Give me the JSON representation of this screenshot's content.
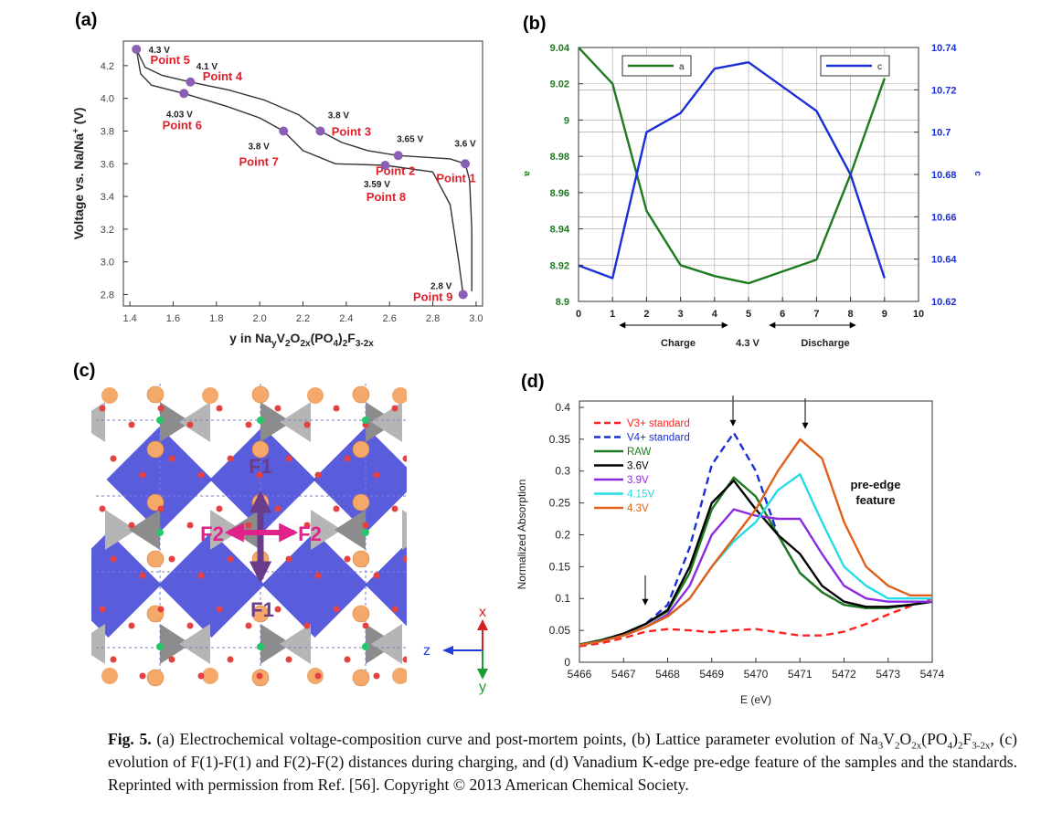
{
  "panels": [
    "(a)",
    "(b)",
    "(c)",
    "(d)"
  ],
  "chart_data": [
    {
      "type": "line",
      "xlabel": [
        "y in Na",
        "y",
        "V",
        "2",
        "O",
        "2x",
        "(PO",
        "4",
        ")",
        "2",
        "F",
        "3-2x"
      ],
      "ylabel": [
        "Voltage vs. Na/Na",
        "+",
        " (V)"
      ],
      "xlim": [
        1.37,
        3.03
      ],
      "ylim": [
        2.73,
        4.35
      ],
      "xticks": [
        1.4,
        1.6,
        1.8,
        {
          "value": 2,
          "label": "2.0"
        },
        2.2,
        2.4,
        2.6,
        2.8,
        {
          "value": 3,
          "label": "3.0"
        }
      ],
      "yticks": [
        2.8,
        {
          "value": 3,
          "label": "3.0"
        },
        3.2,
        3.4,
        3.6,
        3.8,
        {
          "value": 4,
          "label": "4.0"
        },
        4.2
      ],
      "grid": false,
      "series": [
        {
          "color": "#333333",
          "x": [
            2.98,
            2.98,
            2.97,
            2.95,
            2.88,
            2.76,
            2.64,
            2.5,
            2.38,
            2.28,
            2.18,
            2.02,
            1.86,
            1.68,
            1.55,
            1.47,
            1.43
          ],
          "values": [
            2.82,
            3.2,
            3.5,
            3.6,
            3.63,
            3.64,
            3.65,
            3.68,
            3.73,
            3.8,
            3.9,
            3.99,
            4.05,
            4.1,
            4.14,
            4.19,
            4.3
          ]
        },
        {
          "color": "#333333",
          "x": [
            1.43,
            1.45,
            1.5,
            1.65,
            1.85,
            2.0,
            2.11,
            2.2,
            2.35,
            2.58,
            2.8,
            2.88,
            2.92,
            2.94
          ],
          "values": [
            4.3,
            4.15,
            4.08,
            4.03,
            3.95,
            3.88,
            3.8,
            3.68,
            3.6,
            3.59,
            3.55,
            3.35,
            3.0,
            2.8
          ]
        }
      ],
      "points": {
        "color": "#8a5fb5",
        "x": [
          2.95,
          2.64,
          2.28,
          1.68,
          1.43,
          1.65,
          2.11,
          2.58,
          2.94
        ],
        "values": [
          3.6,
          3.65,
          3.8,
          4.1,
          4.3,
          4.03,
          3.8,
          3.59,
          2.8
        ],
        "value_labels": [
          "3.6 V",
          "3.65 V",
          "3.8 V",
          "4.1 V",
          "4.3 V",
          "4.03 V",
          "3.8 V",
          "3.59 V",
          "2.8 V"
        ],
        "labels": [
          "Point 1",
          "Point 2",
          "Point 3",
          "Point 4",
          "Point 5",
          "Point 6",
          "Point 7",
          "Point 8",
          "Point 9"
        ]
      }
    },
    {
      "type": "line",
      "ylabel": "a",
      "y2label": "c",
      "legend": "top",
      "xlim": [
        0,
        10
      ],
      "ylim": [
        8.9,
        9.04
      ],
      "y2lim": [
        10.62,
        10.74
      ],
      "xticks": [
        0,
        1,
        2,
        3,
        4,
        5,
        6,
        7,
        8,
        9,
        10
      ],
      "yticks": [
        8.9,
        8.92,
        8.94,
        8.96,
        8.98,
        9,
        9.02,
        9.04
      ],
      "y2ticks": [
        10.62,
        10.64,
        10.66,
        10.68,
        10.7,
        10.72,
        10.74
      ],
      "grid": true,
      "annotations": [
        "Charge",
        "4.3 V",
        "Discharge"
      ],
      "series": [
        {
          "name": "a",
          "color": "#1e7a1e",
          "x": [
            0,
            1,
            2,
            3,
            4,
            5,
            7,
            8,
            9
          ],
          "values": [
            9.04,
            9.02,
            8.95,
            8.92,
            8.914,
            8.91,
            8.923,
            8.97,
            9.023
          ]
        },
        {
          "name": "c",
          "color": "#1a2fd6",
          "axis": "y2",
          "x": [
            0,
            1,
            2,
            3,
            4,
            5,
            7,
            8,
            9
          ],
          "values": [
            10.637,
            10.631,
            10.7,
            10.709,
            10.73,
            10.733,
            10.71,
            10.68,
            10.631
          ]
        }
      ]
    },
    {
      "type": "line",
      "xlabel": "E (eV)",
      "ylabel": "Normalized Absorption",
      "legend": "upper left",
      "annotation": [
        "pre-edge",
        "feature"
      ],
      "xlim": [
        5466,
        5474
      ],
      "ylim": [
        0,
        0.41
      ],
      "xticks": [
        5466,
        5467,
        5468,
        5469,
        5470,
        5471,
        5472,
        5473,
        5474
      ],
      "yticks": [
        0,
        0.05,
        0.1,
        0.15,
        0.2,
        0.25,
        0.3,
        0.35,
        0.4
      ],
      "grid": false,
      "x": [
        5466,
        5466.5,
        5467,
        5467.5,
        5468,
        5468.5,
        5469,
        5469.5,
        5470,
        5470.5,
        5471,
        5471.5,
        5472,
        5472.5,
        5473,
        5473.5,
        5474
      ],
      "series": [
        {
          "name": "V3+ standard",
          "color": "#ff2222",
          "dash": true,
          "values": [
            0.025,
            0.03,
            0.038,
            0.048,
            0.052,
            0.05,
            0.047,
            0.05,
            0.052,
            0.047,
            0.042,
            0.042,
            0.048,
            0.06,
            0.075,
            0.088,
            0.1
          ]
        },
        {
          "name": "V4+ standard",
          "color": "#1a2fd6",
          "dash": true,
          "values": [
            0.028,
            0.035,
            0.045,
            0.06,
            0.09,
            0.18,
            0.31,
            0.36,
            0.3,
            0.2,
            0.14,
            0.11,
            0.09,
            0.085,
            0.085,
            0.09,
            0.095
          ]
        },
        {
          "name": "RAW",
          "color": "#1e7a1e",
          "values": [
            0.028,
            0.035,
            0.045,
            0.06,
            0.08,
            0.14,
            0.24,
            0.29,
            0.26,
            0.2,
            0.14,
            0.11,
            0.09,
            0.085,
            0.085,
            0.09,
            0.095
          ]
        },
        {
          "name": "3.6V",
          "color": "#000000",
          "values": [
            0.027,
            0.034,
            0.045,
            0.06,
            0.082,
            0.15,
            0.25,
            0.285,
            0.24,
            0.2,
            0.17,
            0.12,
            0.095,
            0.087,
            0.087,
            0.09,
            0.095
          ]
        },
        {
          "name": "3.9V",
          "color": "#8a2be2",
          "values": [
            0.027,
            0.033,
            0.042,
            0.055,
            0.075,
            0.12,
            0.2,
            0.24,
            0.23,
            0.225,
            0.225,
            0.17,
            0.12,
            0.1,
            0.095,
            0.095,
            0.095
          ]
        },
        {
          "name": "4.15V",
          "color": "#22dde6",
          "values": [
            0.027,
            0.033,
            0.042,
            0.055,
            0.072,
            0.1,
            0.15,
            0.19,
            0.22,
            0.27,
            0.295,
            0.22,
            0.15,
            0.12,
            0.1,
            0.1,
            0.1
          ]
        },
        {
          "name": "4.3V",
          "color": "#e0601a",
          "values": [
            0.027,
            0.033,
            0.042,
            0.055,
            0.072,
            0.1,
            0.15,
            0.195,
            0.24,
            0.3,
            0.35,
            0.32,
            0.22,
            0.15,
            0.12,
            0.105,
            0.105
          ]
        }
      ]
    }
  ],
  "structure": {
    "labels": [
      "F1",
      "F2",
      "F2",
      "F1"
    ],
    "axes": [
      "x",
      "z",
      "y"
    ]
  },
  "caption": {
    "label": "Fig. 5.",
    "parts": [
      " (a) Electrochemical voltage-composition curve and post-mortem points, (b) Lattice parameter evolution of Na",
      "3",
      "V",
      "2",
      "O",
      "2x",
      "(PO",
      "4",
      ")",
      "2",
      "F",
      "3-2x",
      ", (c) evolution of F(1)-F(1) and F(2)-F(2) distances during charging, and (d) Vanadium K-edge pre-edge feature of the samples and the standards. Reprinted with permission from Ref. [56]. Copyright © 2013 American Chemical Society."
    ]
  }
}
